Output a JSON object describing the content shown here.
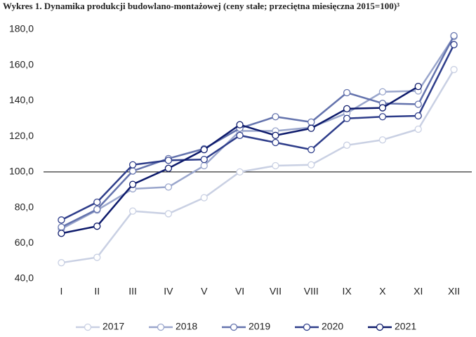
{
  "chart_data": {
    "type": "line",
    "title": "Wykres 1. Dynamika produkcji budowlano-montażowej (ceny stałe; przeciętna miesięczna 2015=100)³",
    "categories": [
      "I",
      "II",
      "III",
      "IV",
      "V",
      "VI",
      "VII",
      "VIII",
      "IX",
      "X",
      "XI",
      "XII"
    ],
    "series": [
      {
        "name": "2017",
        "color": "#c9d0e3",
        "values": [
          49,
          52,
          78,
          76.5,
          85.5,
          100,
          103.5,
          104,
          115,
          118,
          124,
          157.5
        ]
      },
      {
        "name": "2018",
        "color": "#9aa6cc",
        "values": [
          68,
          78.5,
          90.5,
          91.5,
          103.5,
          123,
          123,
          125,
          133,
          145,
          145.5,
          176
        ]
      },
      {
        "name": "2019",
        "color": "#6473ad",
        "values": [
          69,
          79,
          100.5,
          107.5,
          113,
          124.5,
          131,
          128,
          144.5,
          138.5,
          138,
          176.5
        ]
      },
      {
        "name": "2020",
        "color": "#2e3d8a",
        "values": [
          73,
          83,
          104,
          106.5,
          107,
          120.5,
          116.5,
          112.5,
          130,
          131,
          131.5,
          171.5
        ]
      },
      {
        "name": "2021",
        "color": "#0d1a6b",
        "values": [
          65.5,
          69.5,
          93,
          102,
          112.5,
          126.5,
          120.5,
          124.5,
          135.5,
          136,
          148,
          null
        ]
      }
    ],
    "ylim": [
      40,
      180
    ],
    "yticks": [
      {
        "value": 40,
        "label": "40,0"
      },
      {
        "value": 60,
        "label": "60,0"
      },
      {
        "value": 80,
        "label": "80,0"
      },
      {
        "value": 100,
        "label": "100,0"
      },
      {
        "value": 120,
        "label": "120,0"
      },
      {
        "value": 140,
        "label": "140,0"
      },
      {
        "value": 160,
        "label": "160,0"
      },
      {
        "value": 180,
        "label": "180,0"
      }
    ],
    "reference_line": 100,
    "grid": false,
    "legend": "bottom"
  }
}
